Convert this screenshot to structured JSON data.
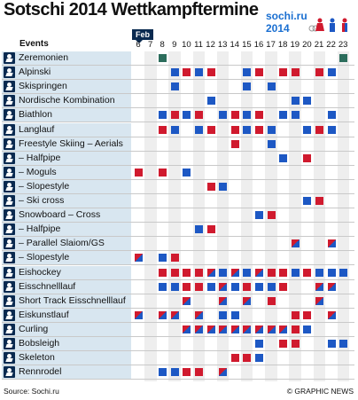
{
  "title": "Sotschi 2014 Wettkampftermine",
  "logo": {
    "line1": "sochi.ru",
    "line2": "2014"
  },
  "events_header": "Events",
  "month": "Feb",
  "days": [
    "6",
    "7",
    "8",
    "9",
    "10",
    "11",
    "12",
    "13",
    "14",
    "15",
    "16",
    "17",
    "18",
    "19",
    "20",
    "21",
    "22",
    "23"
  ],
  "colors": {
    "men": "#1d58c4",
    "women": "#d01a2e",
    "accent": "#0a2a50"
  },
  "icon_names": [
    "ceremony-icon",
    "ski-icon",
    "ski-jump-icon",
    "combined-icon",
    "biathlon-icon",
    "crosscountry-icon",
    "freestyle-icon",
    "snowboard-icon",
    "hockey-icon",
    "speedskate-icon",
    "shorttrack-icon",
    "figureskate-icon",
    "curling-icon",
    "bobsleigh-icon",
    "skeleton-icon",
    "luge-icon"
  ],
  "rows": [
    {
      "label": "Zeremonien",
      "cells": [
        null,
        null,
        "g",
        null,
        null,
        null,
        null,
        null,
        null,
        null,
        null,
        null,
        null,
        null,
        null,
        null,
        null,
        "g"
      ]
    },
    {
      "label": "Alpinski",
      "cells": [
        null,
        null,
        null,
        "b",
        "r",
        "b",
        "r",
        null,
        null,
        "b",
        "r",
        null,
        "r",
        "r",
        null,
        "r",
        "b",
        null
      ]
    },
    {
      "label": "Skispringen",
      "cells": [
        null,
        null,
        null,
        "b",
        null,
        null,
        null,
        null,
        null,
        "b",
        null,
        "b",
        null,
        null,
        null,
        null,
        null,
        null
      ]
    },
    {
      "label": "Nordische Kombination",
      "cells": [
        null,
        null,
        null,
        null,
        null,
        null,
        "b",
        null,
        null,
        null,
        null,
        null,
        null,
        "b",
        "b",
        null,
        null,
        null
      ]
    },
    {
      "label": "Biathlon",
      "cells": [
        null,
        null,
        "b",
        "r",
        "b",
        "r",
        null,
        "b",
        "r",
        "b",
        "r",
        null,
        "b",
        "b",
        null,
        null,
        "b",
        null
      ]
    },
    {
      "label": "Langlauf",
      "cells": [
        null,
        null,
        "r",
        "b",
        null,
        "b",
        "r",
        null,
        "r",
        "b",
        "r",
        "b",
        null,
        null,
        "b",
        "r",
        "b",
        null
      ]
    },
    {
      "label": "Freestyle Skiing – Aerials",
      "cells": [
        null,
        null,
        null,
        null,
        null,
        null,
        null,
        null,
        "r",
        null,
        null,
        "b",
        null,
        null,
        null,
        null,
        null,
        null
      ]
    },
    {
      "label": "– Halfpipe",
      "cells": [
        null,
        null,
        null,
        null,
        null,
        null,
        null,
        null,
        null,
        null,
        null,
        null,
        "b",
        null,
        "r",
        null,
        null,
        null
      ]
    },
    {
      "label": "– Moguls",
      "cells": [
        "r",
        null,
        "r",
        null,
        "b",
        null,
        null,
        null,
        null,
        null,
        null,
        null,
        null,
        null,
        null,
        null,
        null,
        null
      ]
    },
    {
      "label": "– Slopestyle",
      "cells": [
        null,
        null,
        null,
        null,
        null,
        null,
        "r",
        "b",
        null,
        null,
        null,
        null,
        null,
        null,
        null,
        null,
        null,
        null
      ]
    },
    {
      "label": "– Ski cross",
      "cells": [
        null,
        null,
        null,
        null,
        null,
        null,
        null,
        null,
        null,
        null,
        null,
        null,
        null,
        null,
        "b",
        "r",
        null,
        null
      ]
    },
    {
      "label": "Snowboard – Cross",
      "cells": [
        null,
        null,
        null,
        null,
        null,
        null,
        null,
        null,
        null,
        null,
        "b",
        "r",
        null,
        null,
        null,
        null,
        null,
        null
      ]
    },
    {
      "label": "– Halfpipe",
      "cells": [
        null,
        null,
        null,
        null,
        null,
        "b",
        "r",
        null,
        null,
        null,
        null,
        null,
        null,
        null,
        null,
        null,
        null,
        null
      ]
    },
    {
      "label": "– Parallel Slaiom/GS",
      "cells": [
        null,
        null,
        null,
        null,
        null,
        null,
        null,
        null,
        null,
        null,
        null,
        null,
        null,
        "s",
        null,
        null,
        "s",
        null
      ]
    },
    {
      "label": "– Slopestyle",
      "cells": [
        "s",
        null,
        "b",
        "r",
        null,
        null,
        null,
        null,
        null,
        null,
        null,
        null,
        null,
        null,
        null,
        null,
        null,
        null
      ]
    },
    {
      "label": "Eishockey",
      "cells": [
        null,
        null,
        "r",
        "r",
        "r",
        "r",
        "s",
        "b",
        "s",
        "b",
        "s",
        "r",
        "r",
        "b",
        "r",
        "b",
        "b",
        "b"
      ]
    },
    {
      "label": "Eisschnelllauf",
      "cells": [
        null,
        null,
        "b",
        "b",
        "r",
        "r",
        "b",
        "s",
        "b",
        "r",
        "b",
        "b",
        "r",
        null,
        null,
        "s",
        "s",
        null
      ]
    },
    {
      "label": "Short Track Eisschnelllauf",
      "cells": [
        null,
        null,
        null,
        null,
        "s",
        null,
        null,
        "s",
        null,
        "s",
        null,
        "r",
        null,
        null,
        null,
        "s",
        null,
        null
      ]
    },
    {
      "label": "Eiskunstlauf",
      "cells": [
        "s",
        null,
        "s",
        "s",
        null,
        "s",
        null,
        "b",
        "b",
        null,
        null,
        null,
        null,
        "r",
        "r",
        null,
        "s",
        null
      ]
    },
    {
      "label": "Curling",
      "cells": [
        null,
        null,
        null,
        null,
        "s",
        "s",
        "s",
        "s",
        "s",
        "s",
        "s",
        "s",
        "s",
        "r",
        "b",
        null,
        null,
        null
      ]
    },
    {
      "label": "Bobsleigh",
      "cells": [
        null,
        null,
        null,
        null,
        null,
        null,
        null,
        null,
        null,
        null,
        "b",
        null,
        "r",
        "r",
        null,
        null,
        "b",
        "b"
      ]
    },
    {
      "label": "Skeleton",
      "cells": [
        null,
        null,
        null,
        null,
        null,
        null,
        null,
        null,
        "r",
        "r",
        "b",
        null,
        null,
        null,
        null,
        null,
        null,
        null
      ]
    },
    {
      "label": "Rennrodel",
      "cells": [
        null,
        null,
        "b",
        "b",
        "r",
        "r",
        null,
        "s",
        null,
        null,
        null,
        null,
        null,
        null,
        null,
        null,
        null,
        null
      ]
    }
  ],
  "source": "Source: Sochi.ru",
  "credit": "© GRAPHIC NEWS"
}
